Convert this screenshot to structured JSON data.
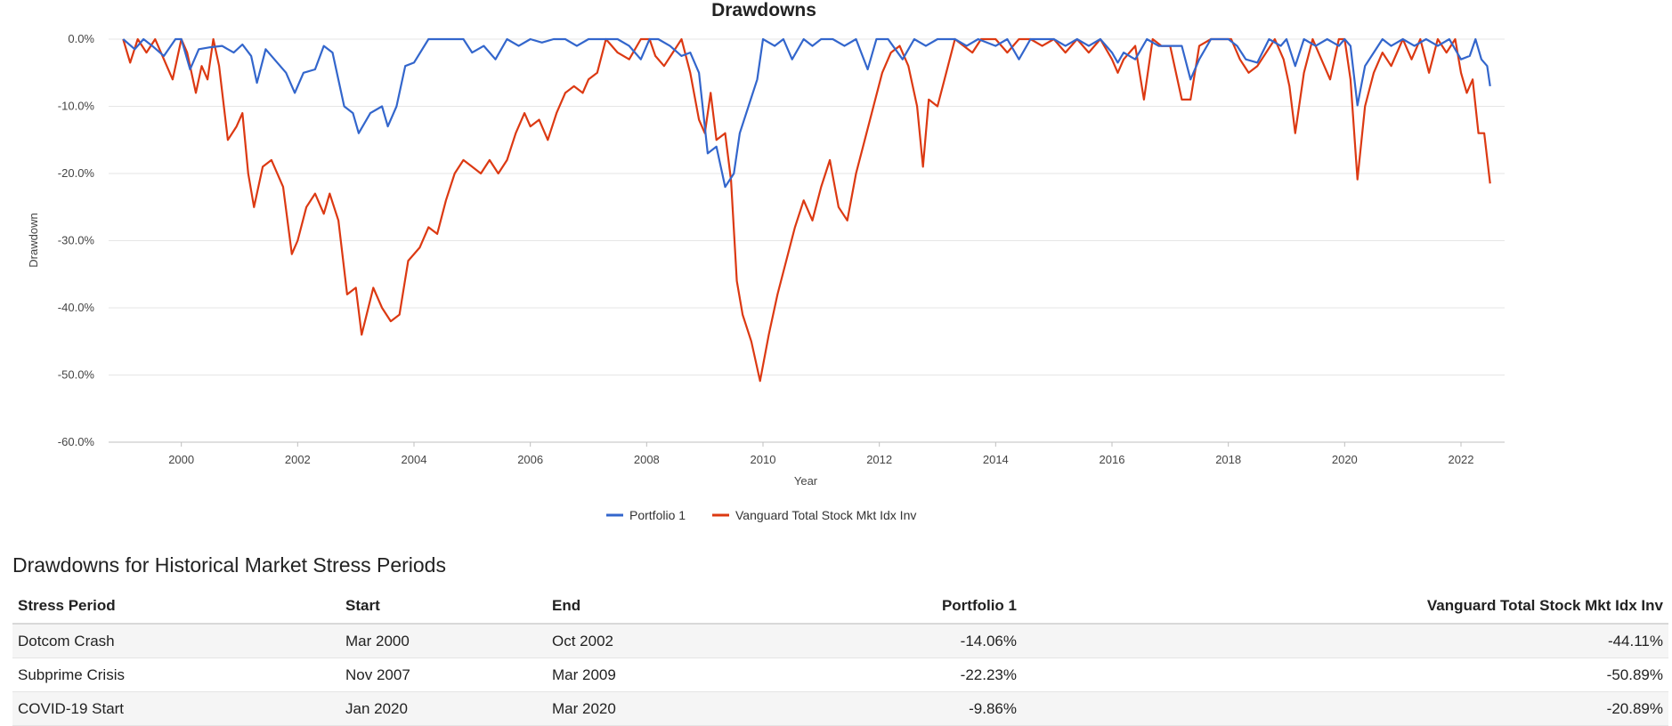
{
  "chart_data": {
    "type": "line",
    "title": "Drawdowns",
    "xlabel": "Year",
    "ylabel": "Drawdown",
    "x_ticks": [
      "2000",
      "2002",
      "2004",
      "2006",
      "2008",
      "2010",
      "2012",
      "2014",
      "2016",
      "2018",
      "2020",
      "2022"
    ],
    "y_ticks": [
      "0.0%",
      "-10.0%",
      "-20.0%",
      "-30.0%",
      "-40.0%",
      "-50.0%",
      "-60.0%"
    ],
    "xlim": [
      1998.75,
      2022.75
    ],
    "ylim": [
      -60,
      0
    ],
    "grid": true,
    "legend_position": "bottom",
    "series": [
      {
        "name": "Portfolio 1",
        "color": "#3366cc",
        "points": [
          [
            1999.0,
            0
          ],
          [
            1999.2,
            -1.5
          ],
          [
            1999.35,
            0
          ],
          [
            1999.5,
            -1
          ],
          [
            1999.7,
            -2.5
          ],
          [
            1999.9,
            0
          ],
          [
            2000.0,
            0
          ],
          [
            2000.15,
            -4.5
          ],
          [
            2000.3,
            -1.5
          ],
          [
            2000.5,
            -1.2
          ],
          [
            2000.7,
            -1
          ],
          [
            2000.9,
            -2
          ],
          [
            2001.05,
            -0.8
          ],
          [
            2001.2,
            -2.5
          ],
          [
            2001.3,
            -6.5
          ],
          [
            2001.45,
            -1.5
          ],
          [
            2001.6,
            -3
          ],
          [
            2001.8,
            -5
          ],
          [
            2001.95,
            -8
          ],
          [
            2002.1,
            -5
          ],
          [
            2002.3,
            -4.5
          ],
          [
            2002.45,
            -1
          ],
          [
            2002.6,
            -2
          ],
          [
            2002.8,
            -10
          ],
          [
            2002.95,
            -11
          ],
          [
            2003.05,
            -14
          ],
          [
            2003.25,
            -11
          ],
          [
            2003.45,
            -10
          ],
          [
            2003.55,
            -13
          ],
          [
            2003.7,
            -10
          ],
          [
            2003.85,
            -4
          ],
          [
            2004.0,
            -3.5
          ],
          [
            2004.25,
            0
          ],
          [
            2004.4,
            0
          ],
          [
            2004.6,
            0
          ],
          [
            2004.85,
            0
          ],
          [
            2005.0,
            -2
          ],
          [
            2005.2,
            -1
          ],
          [
            2005.4,
            -3
          ],
          [
            2005.6,
            0
          ],
          [
            2005.8,
            -1
          ],
          [
            2006.0,
            0
          ],
          [
            2006.2,
            -0.5
          ],
          [
            2006.4,
            0
          ],
          [
            2006.6,
            0
          ],
          [
            2006.8,
            -1
          ],
          [
            2007.0,
            0
          ],
          [
            2007.3,
            0
          ],
          [
            2007.5,
            0
          ],
          [
            2007.7,
            -1
          ],
          [
            2007.9,
            -3
          ],
          [
            2008.05,
            0
          ],
          [
            2008.2,
            0
          ],
          [
            2008.4,
            -1
          ],
          [
            2008.6,
            -2.5
          ],
          [
            2008.75,
            -2
          ],
          [
            2008.9,
            -5
          ],
          [
            2009.05,
            -17
          ],
          [
            2009.2,
            -16
          ],
          [
            2009.35,
            -22
          ],
          [
            2009.5,
            -20
          ],
          [
            2009.6,
            -14
          ],
          [
            2009.75,
            -10
          ],
          [
            2009.9,
            -6
          ],
          [
            2010.0,
            0
          ],
          [
            2010.2,
            -1
          ],
          [
            2010.35,
            0
          ],
          [
            2010.5,
            -3
          ],
          [
            2010.7,
            0
          ],
          [
            2010.85,
            -1
          ],
          [
            2011.0,
            0
          ],
          [
            2011.2,
            0
          ],
          [
            2011.4,
            -1
          ],
          [
            2011.6,
            0
          ],
          [
            2011.8,
            -4.5
          ],
          [
            2011.95,
            0
          ],
          [
            2012.15,
            0
          ],
          [
            2012.4,
            -3
          ],
          [
            2012.6,
            0
          ],
          [
            2012.8,
            -1
          ],
          [
            2013.0,
            0
          ],
          [
            2013.3,
            0
          ],
          [
            2013.5,
            -1
          ],
          [
            2013.7,
            0
          ],
          [
            2014.0,
            -1
          ],
          [
            2014.2,
            0
          ],
          [
            2014.4,
            -3
          ],
          [
            2014.6,
            0
          ],
          [
            2014.8,
            0
          ],
          [
            2015.0,
            0
          ],
          [
            2015.2,
            -1
          ],
          [
            2015.4,
            0
          ],
          [
            2015.6,
            -1
          ],
          [
            2015.8,
            0
          ],
          [
            2016.0,
            -2
          ],
          [
            2016.1,
            -3.5
          ],
          [
            2016.2,
            -2
          ],
          [
            2016.4,
            -3
          ],
          [
            2016.6,
            0
          ],
          [
            2016.8,
            -1
          ],
          [
            2017.0,
            -1
          ],
          [
            2017.2,
            -1
          ],
          [
            2017.35,
            -6
          ],
          [
            2017.5,
            -3
          ],
          [
            2017.7,
            0
          ],
          [
            2017.9,
            0
          ],
          [
            2018.0,
            0
          ],
          [
            2018.15,
            -1
          ],
          [
            2018.3,
            -3
          ],
          [
            2018.5,
            -3.5
          ],
          [
            2018.7,
            0
          ],
          [
            2018.9,
            -1
          ],
          [
            2019.0,
            0
          ],
          [
            2019.15,
            -4
          ],
          [
            2019.3,
            0
          ],
          [
            2019.5,
            -1
          ],
          [
            2019.7,
            0
          ],
          [
            2019.9,
            -1
          ],
          [
            2020.0,
            0
          ],
          [
            2020.1,
            -1
          ],
          [
            2020.22,
            -9.86
          ],
          [
            2020.35,
            -4
          ],
          [
            2020.5,
            -2
          ],
          [
            2020.65,
            0
          ],
          [
            2020.8,
            -1
          ],
          [
            2021.0,
            0
          ],
          [
            2021.2,
            -1
          ],
          [
            2021.4,
            0
          ],
          [
            2021.6,
            -1
          ],
          [
            2021.8,
            0
          ],
          [
            2022.0,
            -3
          ],
          [
            2022.15,
            -2.5
          ],
          [
            2022.25,
            0
          ],
          [
            2022.35,
            -3
          ],
          [
            2022.45,
            -4
          ],
          [
            2022.5,
            -7
          ]
        ]
      },
      {
        "name": "Vanguard Total Stock Mkt Idx Inv",
        "color": "#dc3912",
        "points": [
          [
            1999.0,
            0
          ],
          [
            1999.12,
            -3.5
          ],
          [
            1999.25,
            0
          ],
          [
            1999.4,
            -2
          ],
          [
            1999.55,
            0
          ],
          [
            1999.7,
            -3
          ],
          [
            1999.85,
            -6
          ],
          [
            2000.0,
            0
          ],
          [
            2000.1,
            -2
          ],
          [
            2000.25,
            -8
          ],
          [
            2000.35,
            -4
          ],
          [
            2000.45,
            -6
          ],
          [
            2000.55,
            0
          ],
          [
            2000.65,
            -4
          ],
          [
            2000.8,
            -15
          ],
          [
            2000.95,
            -13
          ],
          [
            2001.05,
            -11
          ],
          [
            2001.15,
            -20
          ],
          [
            2001.25,
            -25
          ],
          [
            2001.4,
            -19
          ],
          [
            2001.55,
            -18
          ],
          [
            2001.75,
            -22
          ],
          [
            2001.9,
            -32
          ],
          [
            2002.0,
            -30
          ],
          [
            2002.15,
            -25
          ],
          [
            2002.3,
            -23
          ],
          [
            2002.45,
            -26
          ],
          [
            2002.55,
            -23
          ],
          [
            2002.7,
            -27
          ],
          [
            2002.85,
            -38
          ],
          [
            2003.0,
            -37
          ],
          [
            2003.1,
            -44
          ],
          [
            2003.3,
            -37
          ],
          [
            2003.45,
            -40
          ],
          [
            2003.6,
            -42
          ],
          [
            2003.75,
            -41
          ],
          [
            2003.9,
            -33
          ],
          [
            2004.1,
            -31
          ],
          [
            2004.25,
            -28
          ],
          [
            2004.4,
            -29
          ],
          [
            2004.55,
            -24
          ],
          [
            2004.7,
            -20
          ],
          [
            2004.85,
            -18
          ],
          [
            2005.0,
            -19
          ],
          [
            2005.15,
            -20
          ],
          [
            2005.3,
            -18
          ],
          [
            2005.45,
            -20
          ],
          [
            2005.6,
            -18
          ],
          [
            2005.75,
            -14
          ],
          [
            2005.9,
            -11
          ],
          [
            2006.0,
            -13
          ],
          [
            2006.15,
            -12
          ],
          [
            2006.3,
            -15
          ],
          [
            2006.45,
            -11
          ],
          [
            2006.6,
            -8
          ],
          [
            2006.75,
            -7
          ],
          [
            2006.9,
            -8
          ],
          [
            2007.0,
            -6
          ],
          [
            2007.15,
            -5
          ],
          [
            2007.3,
            0
          ],
          [
            2007.5,
            -2
          ],
          [
            2007.7,
            -3
          ],
          [
            2007.9,
            0
          ],
          [
            2008.05,
            0
          ],
          [
            2008.15,
            -2.5
          ],
          [
            2008.3,
            -4
          ],
          [
            2008.45,
            -2
          ],
          [
            2008.6,
            0
          ],
          [
            2008.75,
            -5
          ],
          [
            2008.9,
            -12
          ],
          [
            2009.0,
            -14
          ],
          [
            2009.1,
            -8
          ],
          [
            2009.2,
            -15
          ],
          [
            2009.35,
            -14
          ],
          [
            2009.45,
            -21
          ],
          [
            2009.55,
            -36
          ],
          [
            2009.65,
            -41
          ],
          [
            2009.8,
            -45
          ],
          [
            2009.95,
            -50.89
          ],
          [
            2010.1,
            -44
          ],
          [
            2010.25,
            -38
          ],
          [
            2010.4,
            -33
          ],
          [
            2010.55,
            -28
          ],
          [
            2010.7,
            -24
          ],
          [
            2010.85,
            -27
          ],
          [
            2011.0,
            -22
          ],
          [
            2011.15,
            -18
          ],
          [
            2011.3,
            -25
          ],
          [
            2011.45,
            -27
          ],
          [
            2011.6,
            -20
          ],
          [
            2011.75,
            -15
          ],
          [
            2011.9,
            -10
          ],
          [
            2012.05,
            -5
          ],
          [
            2012.2,
            -2
          ],
          [
            2012.35,
            -1
          ],
          [
            2012.5,
            -4
          ],
          [
            2012.65,
            -10
          ],
          [
            2012.75,
            -19
          ],
          [
            2012.85,
            -9
          ],
          [
            2013.0,
            -10
          ],
          [
            2013.15,
            -5
          ],
          [
            2013.3,
            0
          ],
          [
            2013.45,
            -1
          ],
          [
            2013.6,
            -2
          ],
          [
            2013.75,
            0
          ],
          [
            2014.0,
            0
          ],
          [
            2014.2,
            -2
          ],
          [
            2014.4,
            0
          ],
          [
            2014.6,
            0
          ],
          [
            2014.8,
            -1
          ],
          [
            2015.0,
            0
          ],
          [
            2015.2,
            -2
          ],
          [
            2015.4,
            0
          ],
          [
            2015.6,
            -2
          ],
          [
            2015.8,
            0
          ],
          [
            2016.0,
            -3
          ],
          [
            2016.1,
            -5
          ],
          [
            2016.2,
            -3
          ],
          [
            2016.4,
            -1
          ],
          [
            2016.55,
            -9
          ],
          [
            2016.7,
            0
          ],
          [
            2016.85,
            -1
          ],
          [
            2017.0,
            -1
          ],
          [
            2017.2,
            -9
          ],
          [
            2017.35,
            -9
          ],
          [
            2017.5,
            -1
          ],
          [
            2017.7,
            0
          ],
          [
            2017.9,
            0
          ],
          [
            2018.05,
            0
          ],
          [
            2018.2,
            -3
          ],
          [
            2018.35,
            -5
          ],
          [
            2018.5,
            -4
          ],
          [
            2018.65,
            -2
          ],
          [
            2018.8,
            0
          ],
          [
            2018.95,
            -3
          ],
          [
            2019.05,
            -7
          ],
          [
            2019.15,
            -14
          ],
          [
            2019.3,
            -5
          ],
          [
            2019.45,
            0
          ],
          [
            2019.6,
            -3
          ],
          [
            2019.75,
            -6
          ],
          [
            2019.9,
            0
          ],
          [
            2020.0,
            0
          ],
          [
            2020.1,
            -6
          ],
          [
            2020.22,
            -20.89
          ],
          [
            2020.35,
            -10
          ],
          [
            2020.5,
            -5
          ],
          [
            2020.65,
            -2
          ],
          [
            2020.8,
            -4
          ],
          [
            2021.0,
            0
          ],
          [
            2021.15,
            -3
          ],
          [
            2021.3,
            0
          ],
          [
            2021.45,
            -5
          ],
          [
            2021.6,
            0
          ],
          [
            2021.75,
            -2
          ],
          [
            2021.9,
            0
          ],
          [
            2022.0,
            -5
          ],
          [
            2022.1,
            -8
          ],
          [
            2022.2,
            -6
          ],
          [
            2022.3,
            -14
          ],
          [
            2022.4,
            -14
          ],
          [
            2022.5,
            -21.5
          ]
        ]
      }
    ]
  },
  "table": {
    "title": "Drawdowns for Historical Market Stress Periods",
    "headers": {
      "period": "Stress Period",
      "start": "Start",
      "end": "End",
      "p1": "Portfolio 1",
      "vtsmx": "Vanguard Total Stock Mkt Idx Inv"
    },
    "rows": [
      {
        "period": "Dotcom Crash",
        "start": "Mar 2000",
        "end": "Oct 2002",
        "p1": "-14.06%",
        "vtsmx": "-44.11%"
      },
      {
        "period": "Subprime Crisis",
        "start": "Nov 2007",
        "end": "Mar 2009",
        "p1": "-22.23%",
        "vtsmx": "-50.89%"
      },
      {
        "period": "COVID-19 Start",
        "start": "Jan 2020",
        "end": "Mar 2020",
        "p1": "-9.86%",
        "vtsmx": "-20.89%"
      }
    ]
  }
}
